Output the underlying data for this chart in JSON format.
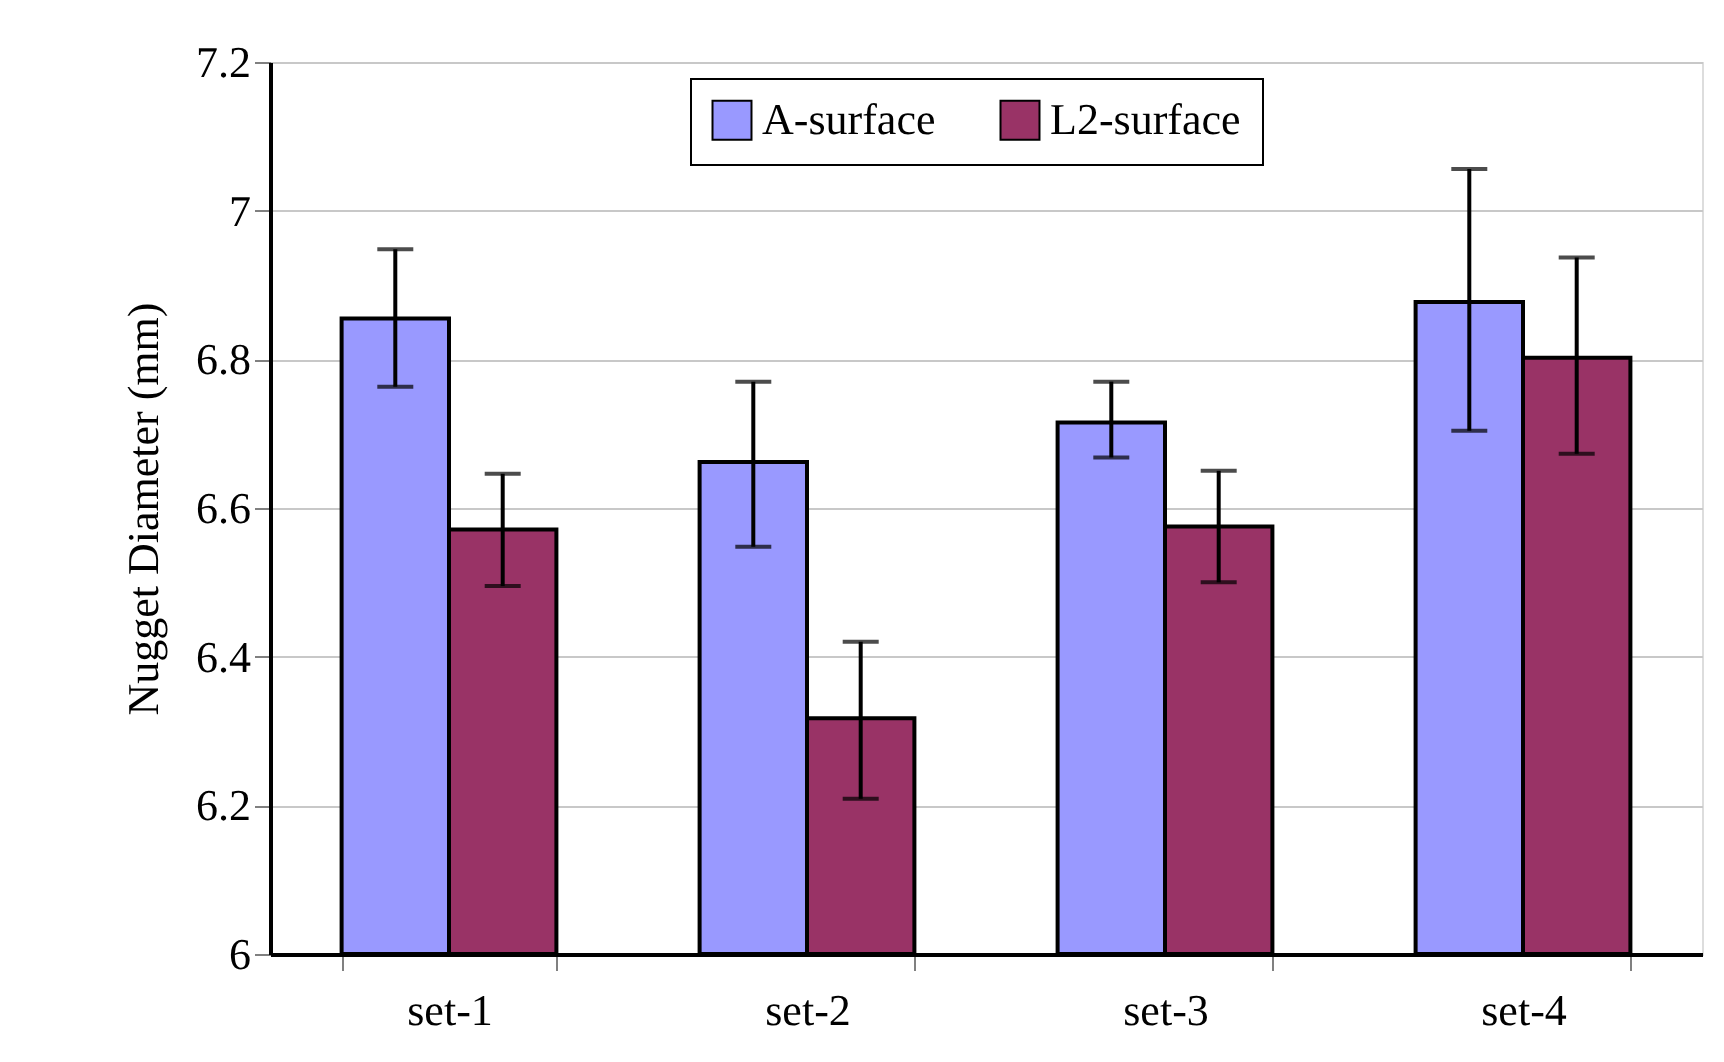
{
  "chart_data": {
    "type": "bar",
    "ylabel": "Nugget Diameter (mm)",
    "categories": [
      "set-1",
      "set-2",
      "set-3",
      "set-4"
    ],
    "series": [
      {
        "name": "A-surface",
        "color": "#9999ff",
        "values": [
          6.855,
          6.662,
          6.715,
          6.877
        ],
        "errors": [
          [
            6.763,
            6.948
          ],
          [
            6.548,
            6.77
          ],
          [
            6.668,
            6.77
          ],
          [
            6.704,
            7.056
          ]
        ]
      },
      {
        "name": "L2-surface",
        "color": "#993366",
        "values": [
          6.571,
          6.317,
          6.575,
          6.802
        ],
        "errors": [
          [
            6.495,
            6.646
          ],
          [
            6.209,
            6.42
          ],
          [
            6.5,
            6.65
          ],
          [
            6.673,
            6.937
          ]
        ]
      }
    ],
    "ylim": [
      6,
      7.2
    ],
    "yticks": [
      6,
      6.2,
      6.4,
      6.6,
      6.8,
      7,
      7.2
    ],
    "grid": "y",
    "legend": "top"
  }
}
